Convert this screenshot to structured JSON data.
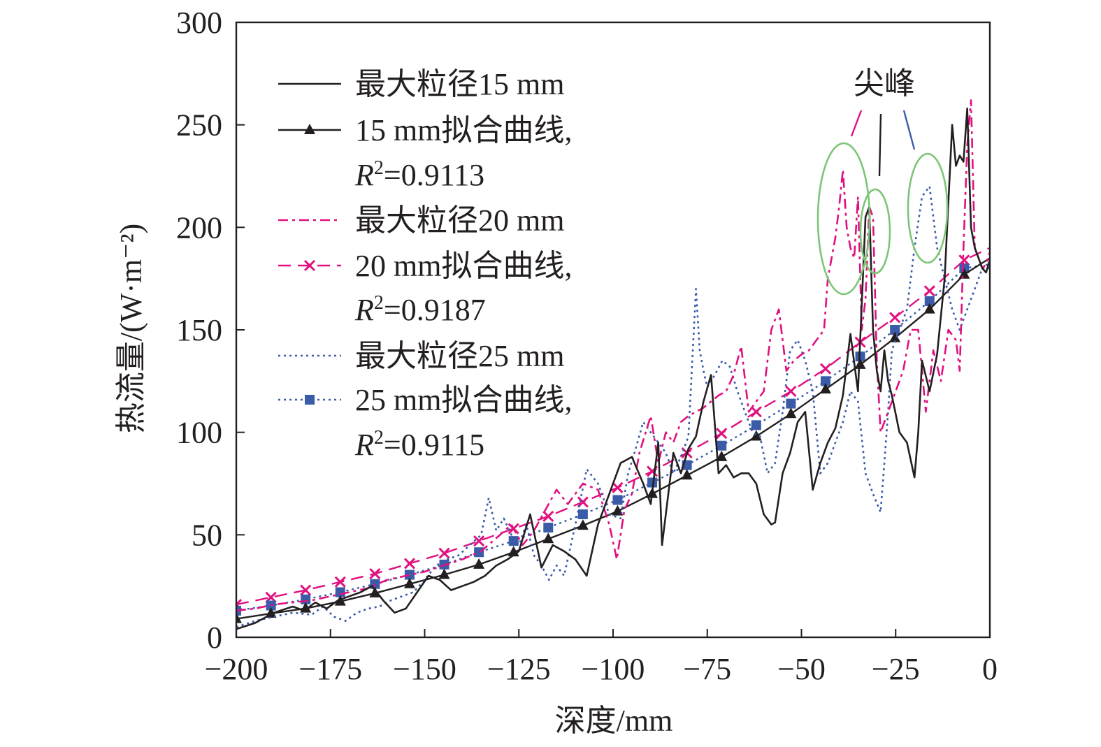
{
  "chart_data": {
    "type": "line",
    "title": "",
    "xlabel": "深度/mm",
    "ylabel": "热流量/(W·m⁻²)",
    "xlim": [
      -200,
      0
    ],
    "ylim": [
      0,
      300
    ],
    "xticks": [
      -200,
      -175,
      -150,
      -125,
      -100,
      -75,
      -50,
      -25,
      0
    ],
    "yticks": [
      0,
      50,
      100,
      150,
      200,
      250,
      300
    ],
    "xtick_labels": [
      "−200",
      "−175",
      "−150",
      "−125",
      "−100",
      "−75",
      "−50",
      "−25",
      "0"
    ],
    "ytick_labels": [
      "0",
      "50",
      "100",
      "150",
      "200",
      "250",
      "300"
    ],
    "grid": false,
    "legend_position": "top-left",
    "colors": {
      "black": "#231f20",
      "magenta": "#e0117f",
      "blue": "#3a5ba8",
      "green": "#7cc576"
    },
    "annotation": {
      "text": "尖峰"
    },
    "series": [
      {
        "name": "最大粒径15 mm",
        "kind": "raw",
        "color": "#231f20",
        "dash": "",
        "x": [
          -200,
          -195,
          -190,
          -185,
          -182,
          -179,
          -176,
          -173,
          -170,
          -167,
          -164,
          -161,
          -158,
          -155,
          -152,
          -149,
          -146,
          -143,
          -140,
          -137,
          -134,
          -131,
          -128,
          -125,
          -122,
          -119,
          -116,
          -113,
          -110,
          -107,
          -104,
          -101,
          -98,
          -95,
          -92,
          -90,
          -88,
          -87,
          -86,
          -84,
          -82,
          -80,
          -78,
          -76,
          -74,
          -72,
          -70,
          -68,
          -66,
          -64,
          -62,
          -60,
          -58,
          -57,
          -55,
          -53,
          -51,
          -49,
          -47,
          -45,
          -43,
          -41,
          -39,
          -37,
          -35,
          -33,
          -32,
          -31,
          -30,
          -29,
          -28,
          -27,
          -26,
          -24,
          -22,
          -20,
          -19,
          -18,
          -16,
          -14,
          -12,
          -10,
          -9,
          -8,
          -7,
          -6,
          -5,
          -4,
          -3,
          -2,
          -1,
          0
        ],
        "values": [
          4,
          7,
          12,
          15,
          13,
          17,
          14,
          18,
          20,
          22,
          25,
          18,
          12,
          14,
          22,
          30,
          28,
          23,
          25,
          27,
          30,
          35,
          38,
          42,
          60,
          34,
          45,
          42,
          38,
          30,
          55,
          70,
          85,
          88,
          75,
          65,
          95,
          45,
          60,
          90,
          80,
          92,
          98,
          115,
          128,
          80,
          84,
          78,
          80,
          80,
          75,
          60,
          55,
          56,
          80,
          90,
          105,
          110,
          72,
          85,
          95,
          102,
          118,
          148,
          120,
          205,
          210,
          150,
          130,
          120,
          140,
          125,
          118,
          100,
          95,
          78,
          100,
          135,
          120,
          138,
          175,
          250,
          230,
          235,
          232,
          258,
          200,
          190,
          185,
          180,
          178,
          184
        ]
      },
      {
        "name": "15 mm拟合曲线,",
        "label_r2": "=0.9113",
        "kind": "fit",
        "color": "#231f20",
        "dash": "",
        "marker": "triangle",
        "x": [
          -200,
          -190.8,
          -181.6,
          -172.4,
          -163.2,
          -154,
          -144.8,
          -135.6,
          -126.4,
          -117.2,
          -108,
          -98.8,
          -89.6,
          -80.4,
          -71.2,
          -62,
          -52.8,
          -43.6,
          -34.4,
          -25.2,
          -16,
          -6.8
        ],
        "values": [
          9,
          11.6,
          14.1,
          17.5,
          21.5,
          26,
          30.5,
          35.5,
          41.5,
          48,
          54.5,
          61.5,
          70,
          79,
          88,
          98,
          109,
          121,
          133,
          146,
          160,
          177
        ],
        "line_end": 185
      },
      {
        "name": "最大粒径20 mm",
        "kind": "raw",
        "color": "#e0117f",
        "dash": "14,6,4,6",
        "x": [
          -200,
          -195,
          -190,
          -185,
          -180,
          -175,
          -170,
          -165,
          -160,
          -155,
          -150,
          -145,
          -140,
          -135,
          -130,
          -127,
          -124,
          -121,
          -118,
          -115,
          -112,
          -108,
          -104,
          -101,
          -99,
          -97,
          -95,
          -93,
          -90,
          -88,
          -86,
          -84,
          -82,
          -80,
          -78,
          -76,
          -74,
          -72,
          -70,
          -68,
          -66,
          -64,
          -62,
          -60,
          -58,
          -56,
          -54,
          -52,
          -50,
          -48,
          -46,
          -44,
          -43,
          -42,
          -41,
          -40,
          -39,
          -38,
          -37,
          -36,
          -35,
          -34,
          -33,
          -32,
          -31,
          -30,
          -29,
          -28,
          -27,
          -25,
          -23,
          -21,
          -19,
          -17,
          -15,
          -13,
          -11,
          -9,
          -8,
          -7,
          -6,
          -5,
          -4,
          -3,
          -2,
          -1,
          0
        ],
        "values": [
          13,
          14,
          16,
          17,
          18,
          20,
          22,
          24,
          28,
          30,
          32,
          35,
          38,
          42,
          50,
          55,
          45,
          52,
          62,
          72,
          65,
          75,
          72,
          55,
          38,
          62,
          70,
          90,
          108,
          85,
          100,
          95,
          105,
          108,
          110,
          112,
          115,
          118,
          120,
          128,
          142,
          110,
          115,
          120,
          150,
          160,
          130,
          135,
          138,
          140,
          145,
          150,
          175,
          185,
          195,
          210,
          228,
          200,
          190,
          185,
          215,
          150,
          165,
          210,
          205,
          135,
          100,
          105,
          110,
          120,
          130,
          150,
          150,
          110,
          140,
          125,
          150,
          145,
          130,
          190,
          240,
          262,
          190,
          185,
          180,
          182,
          188
        ]
      },
      {
        "name": "20 mm拟合曲线,",
        "label_r2": "=0.9187",
        "kind": "fit",
        "color": "#e0117f",
        "dash": "18,10",
        "marker": "x",
        "x": [
          -200,
          -190.8,
          -181.6,
          -172.4,
          -163.2,
          -154,
          -144.8,
          -135.6,
          -126.4,
          -117.2,
          -108,
          -98.8,
          -89.6,
          -80.4,
          -71.2,
          -62,
          -52.8,
          -43.6,
          -34.4,
          -25.2,
          -16,
          -6.8
        ],
        "values": [
          16,
          19.5,
          23,
          27,
          31,
          36,
          41,
          47,
          53,
          59,
          66,
          73,
          81,
          90,
          99.5,
          110,
          120,
          131,
          144,
          156,
          169,
          184
        ],
        "line_end": 190
      },
      {
        "name": "最大粒径25 mm",
        "kind": "raw",
        "color": "#3a5ba8",
        "dash": "3,5",
        "x": [
          -200,
          -195,
          -190,
          -185,
          -180,
          -177,
          -174,
          -171,
          -168,
          -165,
          -162,
          -159,
          -156,
          -153,
          -150,
          -147,
          -144,
          -141,
          -138,
          -135,
          -133,
          -131,
          -129,
          -127,
          -125,
          -123,
          -121,
          -119,
          -117,
          -115,
          -113,
          -110,
          -107,
          -104,
          -101,
          -98,
          -96,
          -94,
          -92,
          -90,
          -88,
          -86,
          -84,
          -82,
          -80,
          -78,
          -77,
          -76,
          -75,
          -73,
          -71,
          -69,
          -67,
          -65,
          -63,
          -61,
          -59,
          -57,
          -55,
          -53,
          -51,
          -49,
          -47,
          -45,
          -43,
          -41,
          -39,
          -37,
          -35,
          -33,
          -31,
          -29,
          -28,
          -27,
          -26,
          -25,
          -24,
          -22,
          -20,
          -18,
          -16,
          -14,
          -12,
          -10,
          -8,
          -6,
          -4,
          -2,
          0
        ],
        "values": [
          5,
          8,
          10,
          12,
          11,
          15,
          10,
          8,
          12,
          14,
          15,
          18,
          20,
          22,
          28,
          35,
          38,
          40,
          45,
          50,
          68,
          52,
          58,
          50,
          45,
          55,
          40,
          35,
          28,
          35,
          30,
          55,
          82,
          75,
          60,
          58,
          80,
          92,
          105,
          100,
          95,
          90,
          80,
          88,
          98,
          170,
          140,
          130,
          122,
          128,
          135,
          132,
          120,
          110,
          100,
          98,
          80,
          85,
          110,
          140,
          145,
          135,
          120,
          80,
          85,
          95,
          105,
          120,
          115,
          80,
          70,
          61,
          85,
          110,
          140,
          145,
          150,
          160,
          190,
          215,
          220,
          190,
          175,
          160,
          150,
          160,
          170,
          180,
          180
        ]
      },
      {
        "name": "25 mm拟合曲线,",
        "label_r2": "=0.9115",
        "kind": "fit",
        "color": "#3a5ba8",
        "dash": "3,5",
        "marker": "square",
        "x": [
          -200,
          -190.8,
          -181.6,
          -172.4,
          -163.2,
          -154,
          -144.8,
          -135.6,
          -126.4,
          -117.2,
          -108,
          -98.8,
          -89.6,
          -80.4,
          -71.2,
          -62,
          -52.8,
          -43.6,
          -34.4,
          -25.2,
          -16,
          -6.8
        ],
        "values": [
          13,
          15.5,
          18.5,
          22,
          26,
          30.5,
          35.5,
          41.5,
          47,
          53.5,
          60,
          67,
          75.5,
          84,
          93.5,
          103.5,
          114,
          125,
          137,
          150,
          164,
          180
        ],
        "line_end": 182
      }
    ]
  }
}
